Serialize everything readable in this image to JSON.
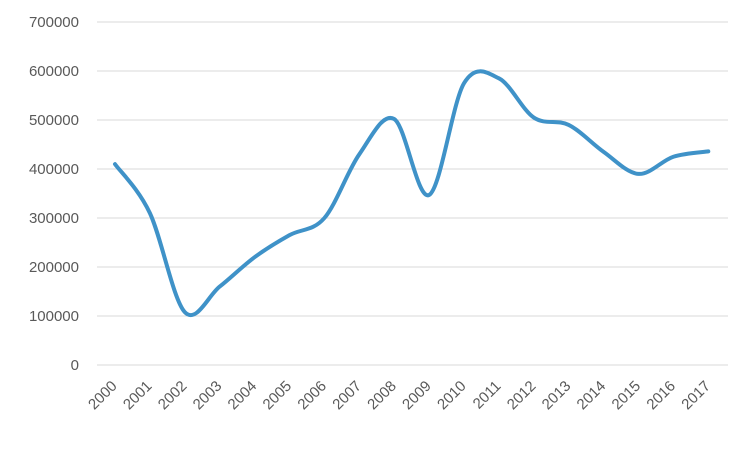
{
  "chart_data": {
    "type": "line",
    "x": [
      "2000",
      "2001",
      "2002",
      "2003",
      "2004",
      "2005",
      "2006",
      "2007",
      "2008",
      "2009",
      "2010",
      "2011",
      "2012",
      "2013",
      "2014",
      "2015",
      "2016",
      "2017"
    ],
    "series": [
      {
        "values": [
          410000,
          310000,
          108000,
          160000,
          220000,
          265000,
          300000,
          430000,
          502000,
          347000,
          575000,
          585000,
          505000,
          490000,
          435000,
          390000,
          425000,
          436000
        ],
        "color": "#3f92c8"
      }
    ],
    "ylim": [
      0,
      700000
    ],
    "yticks": [
      "0",
      "100000",
      "200000",
      "300000",
      "400000",
      "500000",
      "600000",
      "700000"
    ],
    "grid": true,
    "legend": "none",
    "smooth": true
  }
}
